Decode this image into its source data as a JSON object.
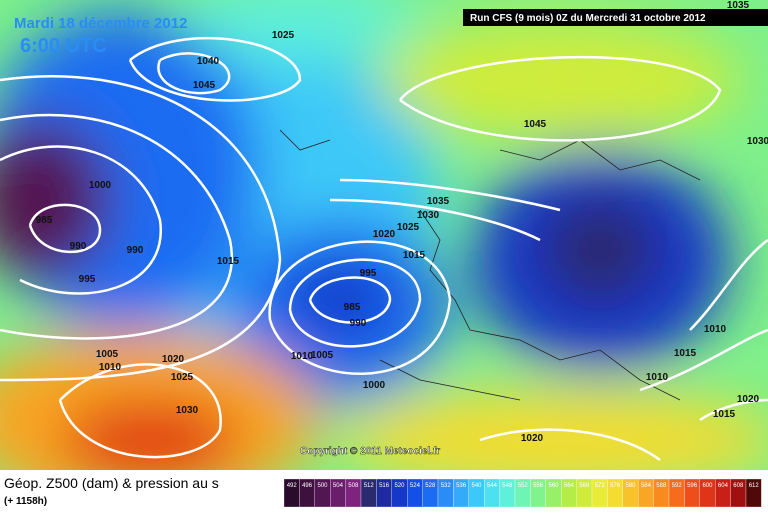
{
  "header": {
    "title": "Mardi 18 décembre 2012",
    "time": "6:00 UTC",
    "run": "Run CFS (9 mois) 0Z du Mercredi 31 octobre 2012"
  },
  "isobar_labels": [
    1035,
    1025,
    1040,
    1045,
    1045,
    1030,
    1000,
    985,
    990,
    990,
    995,
    1015,
    1035,
    1030,
    1025,
    1020,
    1015,
    995,
    985,
    990,
    1010,
    1005,
    1005,
    1010,
    1020,
    1025,
    1030,
    1000,
    1010,
    1015,
    1010,
    1020,
    1015,
    1020
  ],
  "copyright": "Copyright © 2011 Meteociel.fr",
  "footer": {
    "caption": "Géop. Z500 (dam) & pression au s",
    "forecast": "(+ 1158h)"
  },
  "scale": {
    "labels": [
      492,
      496,
      500,
      504,
      508,
      512,
      516,
      520,
      524,
      528,
      532,
      536,
      540,
      544,
      548,
      552,
      556,
      560,
      564,
      568,
      572,
      576,
      580,
      584,
      588,
      592,
      596,
      600,
      604,
      608,
      612
    ],
    "colors": [
      "#2b0b2b",
      "#3d103d",
      "#521652",
      "#6a1d6a",
      "#7e237e",
      "#2a2a6e",
      "#1e2aa0",
      "#1638c8",
      "#1450e6",
      "#1c6cf2",
      "#2a8cf6",
      "#34aaf8",
      "#3cc8f8",
      "#4ce0f0",
      "#5ef0d8",
      "#6ef4b4",
      "#80f48c",
      "#98f068",
      "#b4ec48",
      "#d0ec3a",
      "#e8ec36",
      "#f4dc30",
      "#f8c22a",
      "#f8a624",
      "#f88a20",
      "#f46c1c",
      "#ee4e1a",
      "#e03418",
      "#c82016",
      "#a01010",
      "#500808"
    ]
  }
}
